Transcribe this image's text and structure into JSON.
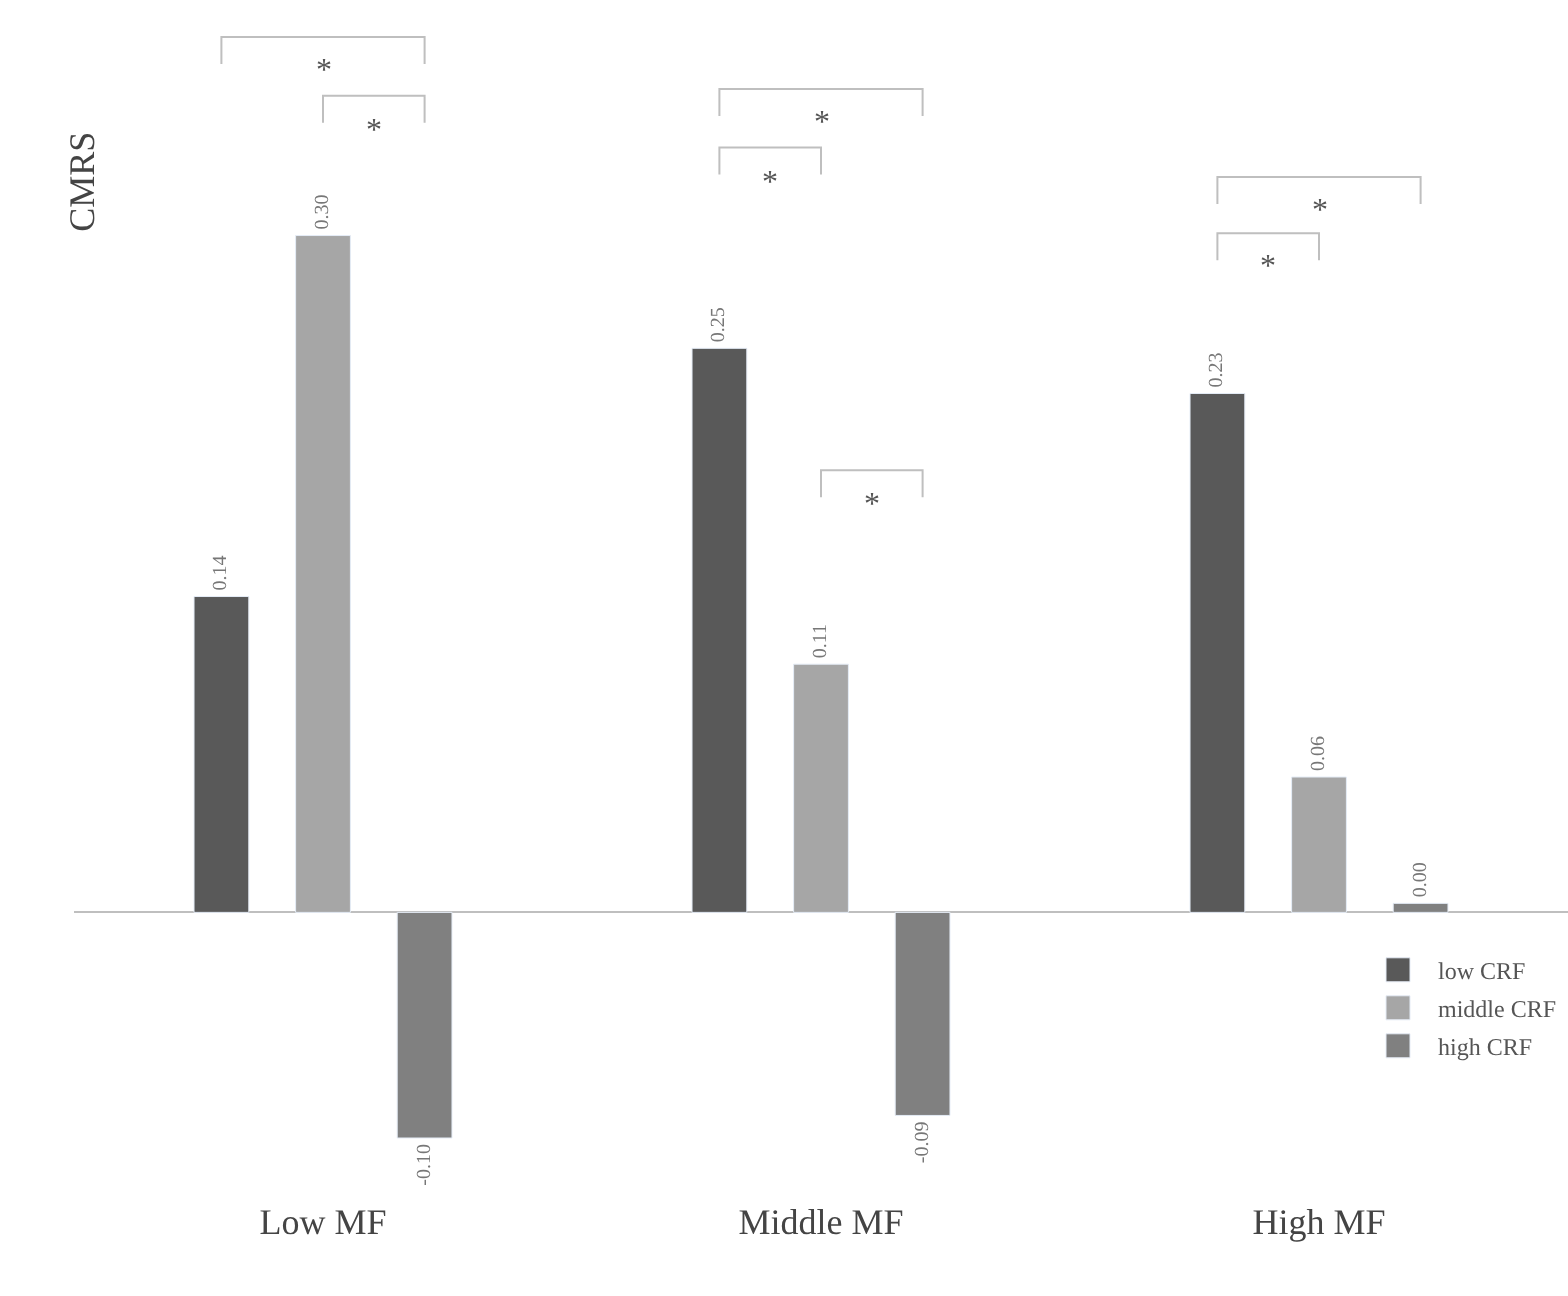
{
  "chart_data": {
    "type": "bar",
    "ylabel": "CMRS",
    "categories": [
      "Low MF",
      "Middle MF",
      "High MF"
    ],
    "series": [
      {
        "name": "low CRF",
        "color": "#595959",
        "values": [
          0.14,
          0.25,
          0.23
        ],
        "value_labels": [
          "0.14",
          "0.25",
          "0.23"
        ]
      },
      {
        "name": "middle CRF",
        "color": "#a6a6a6",
        "values": [
          0.3,
          0.11,
          0.06
        ],
        "value_labels": [
          "0.30",
          "0.11",
          "0.06"
        ]
      },
      {
        "name": "high CRF",
        "color": "#808080",
        "values": [
          -0.1,
          -0.09,
          0.004
        ],
        "value_labels": [
          "-0.10",
          "-0.09",
          "0.00"
        ]
      }
    ],
    "legend": "bottom right",
    "annotations": [
      "*",
      "*",
      "*",
      "*",
      "*",
      "*",
      "*"
    ]
  }
}
